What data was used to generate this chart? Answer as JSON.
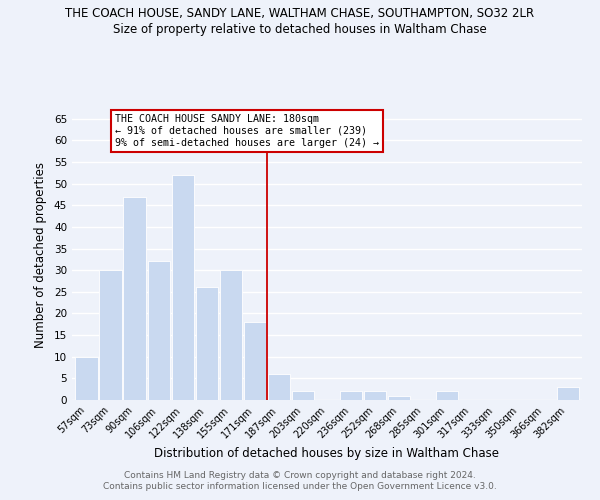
{
  "title": "THE COACH HOUSE, SANDY LANE, WALTHAM CHASE, SOUTHAMPTON, SO32 2LR",
  "subtitle": "Size of property relative to detached houses in Waltham Chase",
  "xlabel": "Distribution of detached houses by size in Waltham Chase",
  "ylabel": "Number of detached properties",
  "bar_labels": [
    "57sqm",
    "73sqm",
    "90sqm",
    "106sqm",
    "122sqm",
    "138sqm",
    "155sqm",
    "171sqm",
    "187sqm",
    "203sqm",
    "220sqm",
    "236sqm",
    "252sqm",
    "268sqm",
    "285sqm",
    "301sqm",
    "317sqm",
    "333sqm",
    "350sqm",
    "366sqm",
    "382sqm"
  ],
  "bar_heights": [
    10,
    30,
    47,
    32,
    52,
    26,
    30,
    18,
    6,
    2,
    0,
    2,
    2,
    1,
    0,
    2,
    0,
    0,
    0,
    0,
    3
  ],
  "bar_color": "#c9d9f0",
  "bar_edge_color": "#ffffff",
  "reference_line_x": 7.5,
  "annotation_line1": "THE COACH HOUSE SANDY LANE: 180sqm",
  "annotation_line2": "← 91% of detached houses are smaller (239)",
  "annotation_line3": "9% of semi-detached houses are larger (24) →",
  "annotation_box_color": "#ffffff",
  "annotation_box_edge": "#cc0000",
  "ylim": [
    0,
    67
  ],
  "yticks": [
    0,
    5,
    10,
    15,
    20,
    25,
    30,
    35,
    40,
    45,
    50,
    55,
    60,
    65
  ],
  "footer_line1": "Contains HM Land Registry data © Crown copyright and database right 2024.",
  "footer_line2": "Contains public sector information licensed under the Open Government Licence v3.0.",
  "background_color": "#eef2fa",
  "grid_color": "#ffffff"
}
